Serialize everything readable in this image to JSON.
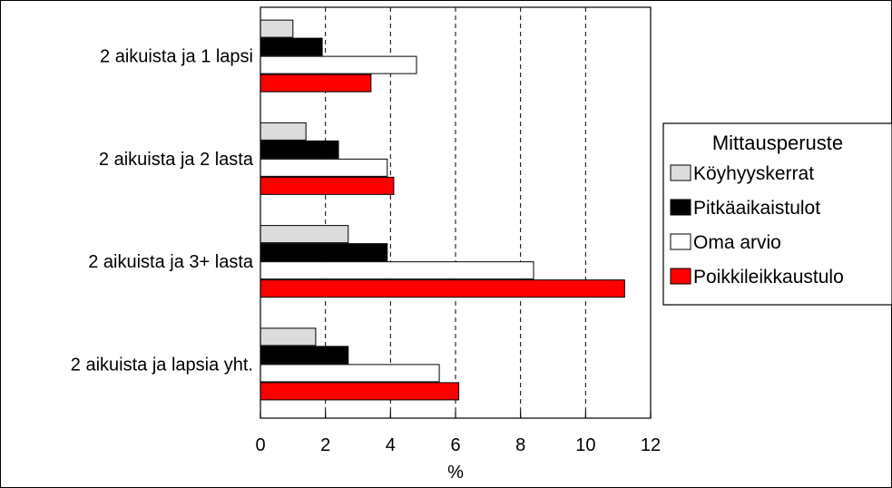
{
  "chart_data": {
    "type": "bar",
    "orientation": "horizontal",
    "categories": [
      "2 aikuista ja 1 lapsi",
      "2 aikuista ja 2 lasta",
      "2 aikuista ja 3+ lasta",
      "2 aikuista ja lapsia yht."
    ],
    "series": [
      {
        "name": "Köyhyyskerrat",
        "values": [
          1.0,
          1.4,
          2.7,
          1.7
        ],
        "color": "#dcdcdc"
      },
      {
        "name": "Pitkäaikaistulot",
        "values": [
          1.9,
          2.4,
          3.9,
          2.7
        ],
        "color": "#000000"
      },
      {
        "name": "Oma arvio",
        "values": [
          4.8,
          3.9,
          8.4,
          5.5
        ],
        "color": "#ffffff"
      },
      {
        "name": "Poikkileikkaustulo",
        "values": [
          3.4,
          4.1,
          11.2,
          6.1
        ],
        "color": "#ff0000"
      }
    ],
    "xlabel": "%",
    "xlim": [
      0,
      12
    ],
    "xticks": [
      "0",
      "2",
      "4",
      "6",
      "8",
      "10",
      "12"
    ],
    "grid": "vertical-dashed",
    "legend": {
      "title": "Mittausperuste",
      "placement": "right"
    }
  }
}
